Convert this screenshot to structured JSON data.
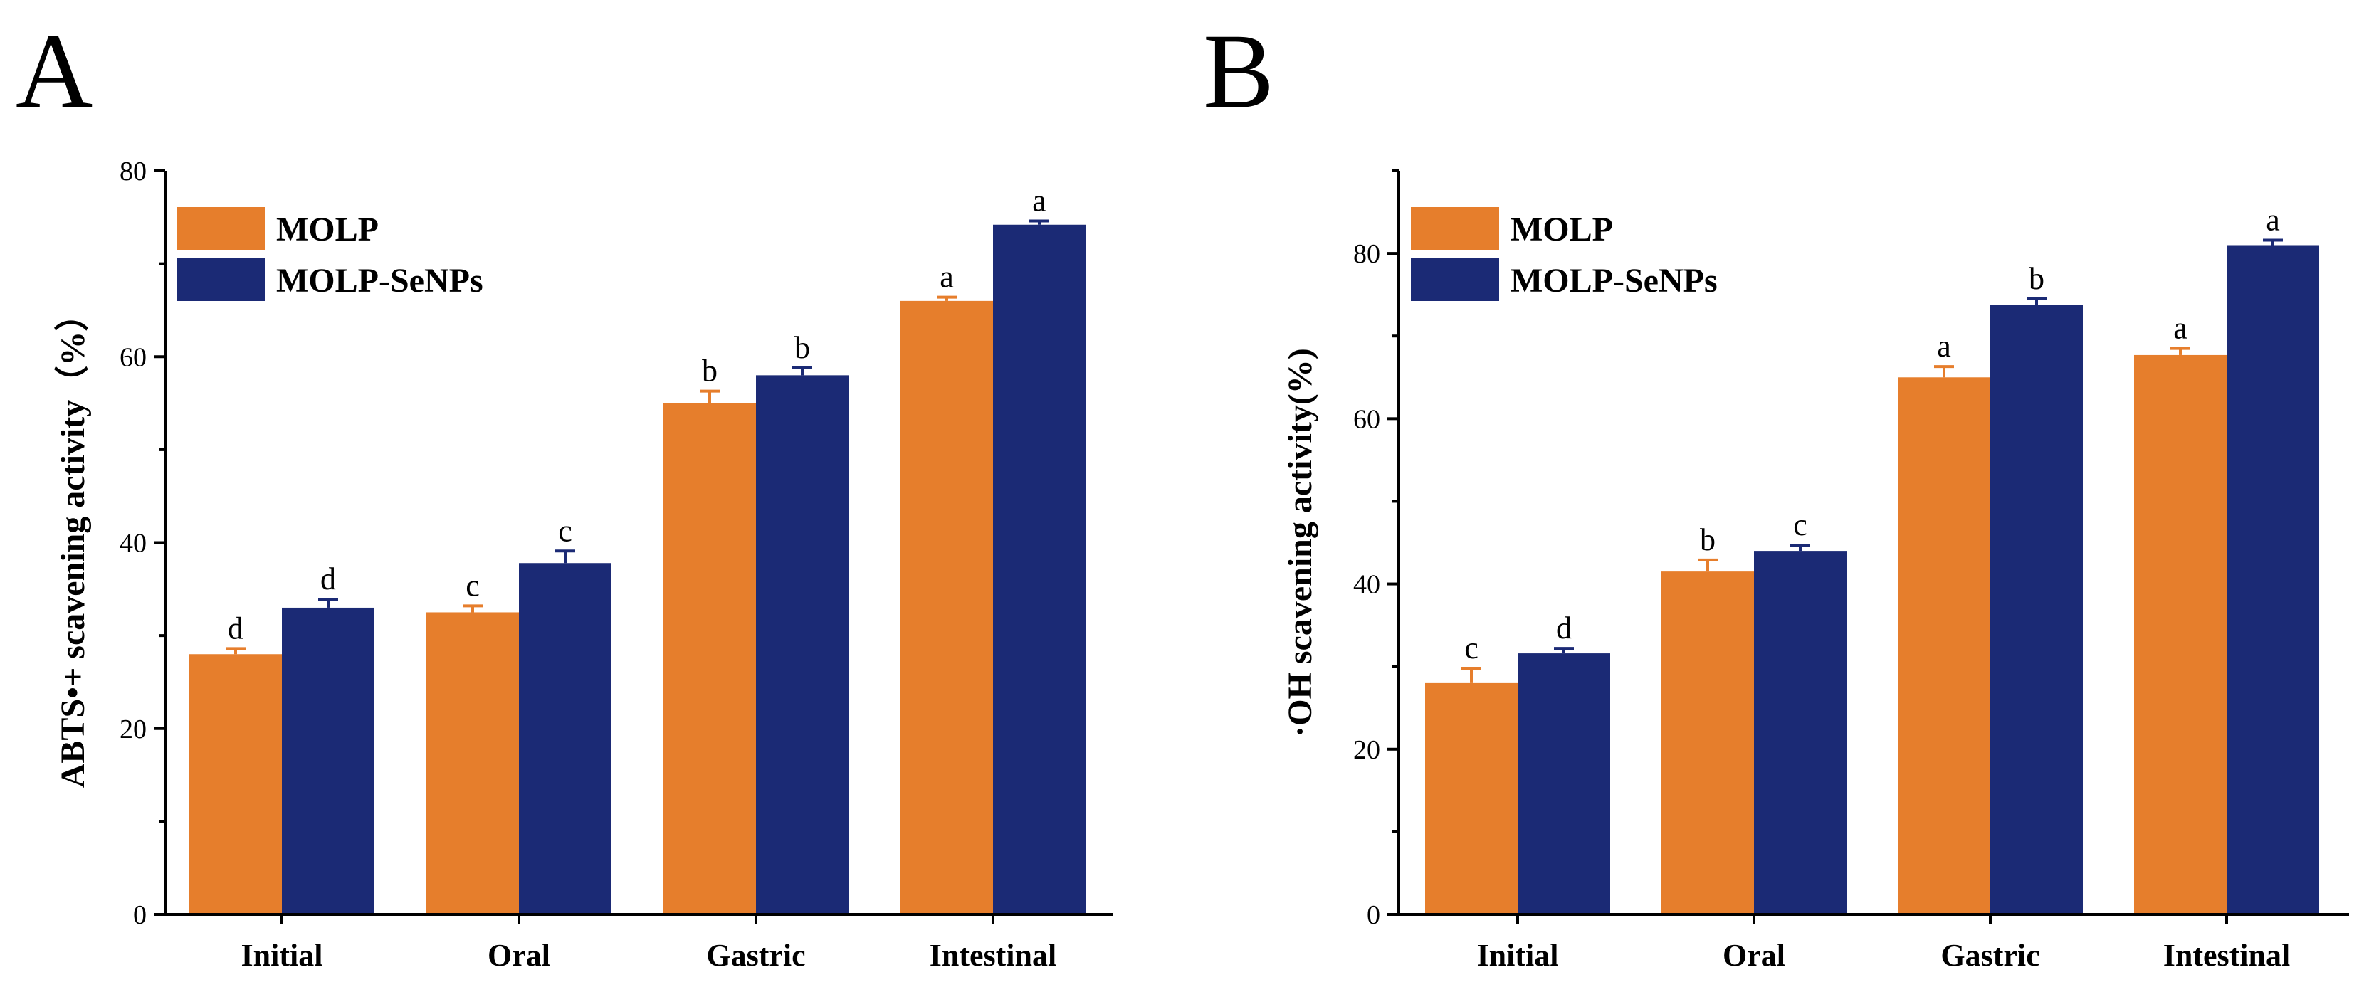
{
  "chart_data": [
    {
      "panel_label": "A",
      "type": "bar",
      "categories": [
        "Initial",
        "Oral",
        "Gastric",
        "Intestinal"
      ],
      "series": [
        {
          "name": "MOLP",
          "values": [
            28,
            32.5,
            55,
            66
          ],
          "errors": [
            0.6,
            0.7,
            1.3,
            0.4
          ],
          "labels": [
            "d",
            "c",
            "b",
            "a"
          ],
          "color": "#E67E2C"
        },
        {
          "name": "MOLP-SeNPs",
          "values": [
            33,
            37.8,
            58,
            74.2
          ],
          "errors": [
            0.9,
            1.3,
            0.8,
            0.4
          ],
          "labels": [
            "d",
            "c",
            "b",
            "a"
          ],
          "color": "#1B2A75"
        }
      ],
      "xlabel": "",
      "ylabel": "ABTS•+ scavening activity（%）",
      "ylim": [
        0,
        80
      ],
      "yticks": [
        0,
        20,
        40,
        60,
        80
      ],
      "grid": false,
      "legend": "top-left"
    },
    {
      "panel_label": "B",
      "type": "bar",
      "categories": [
        "Initial",
        "Oral",
        "Gastric",
        "Intestinal"
      ],
      "series": [
        {
          "name": "MOLP",
          "values": [
            28,
            41.5,
            65,
            67.7
          ],
          "errors": [
            1.8,
            1.4,
            1.3,
            0.8
          ],
          "labels": [
            "c",
            "b",
            "a",
            "a"
          ],
          "color": "#E67E2C"
        },
        {
          "name": "MOLP-SeNPs",
          "values": [
            31.6,
            44,
            73.8,
            81
          ],
          "errors": [
            0.6,
            0.7,
            0.7,
            0.6
          ],
          "labels": [
            "d",
            "c",
            "b",
            "a"
          ],
          "color": "#1B2A75"
        }
      ],
      "xlabel": "",
      "ylabel": "·OH scavening activity(%)",
      "ylim": [
        0,
        90
      ],
      "yticks": [
        0,
        20,
        40,
        60,
        80
      ],
      "grid": false,
      "legend": "top-left"
    }
  ]
}
